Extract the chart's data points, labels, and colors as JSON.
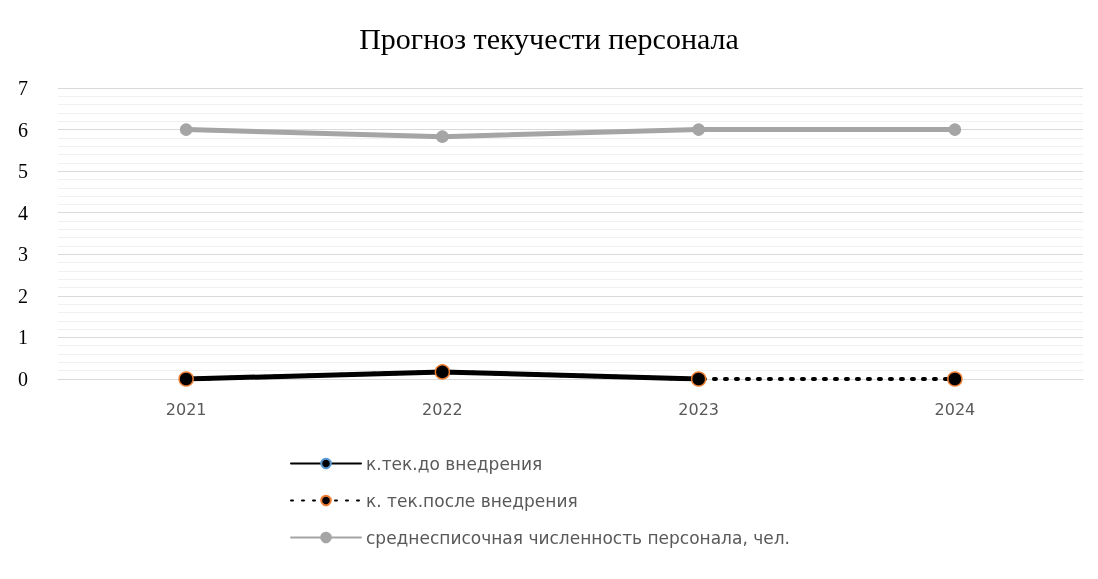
{
  "chart_data": {
    "type": "line",
    "title": "Прогноз текучести персонала",
    "categories": [
      "2021",
      "2022",
      "2023",
      "2024"
    ],
    "series": [
      {
        "name": "к.тек.до внедрения",
        "color": "#000000",
        "line_style": "solid",
        "values": [
          0,
          0.17,
          0,
          null
        ]
      },
      {
        "name": "к. тек.после внедрения",
        "color": "#000000",
        "line_style": "dotted",
        "values": [
          0,
          0.17,
          0,
          0
        ]
      },
      {
        "name": "среднесписочная численность персонала, чел.",
        "color": "#a5a5a5",
        "line_style": "solid",
        "values": [
          6,
          5.83,
          6,
          6
        ]
      }
    ],
    "ylim": [
      0,
      7
    ],
    "yticks": [
      0,
      1,
      2,
      3,
      4,
      5,
      6,
      7
    ],
    "grid": "y",
    "legend": "bottom",
    "marker": "circle"
  }
}
